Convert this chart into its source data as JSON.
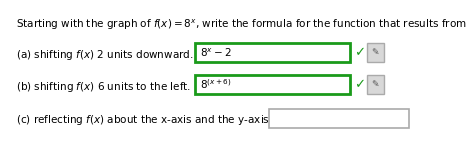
{
  "title_text": "Starting with the graph of $f(x) = 8^x$, write the formula for the function that results from",
  "line_a_label": "(a) shifting $f(x)$ 2 units downward.  $\\mathbf{y}$ =",
  "line_a_content": "$8^x - 2$",
  "line_b_label": "(b) shifting $f(x)$ 6 units to the left.  $\\mathbf{y}$ =",
  "line_b_content": "$8^{(x+6)}$",
  "line_c_label": "(c) reflecting $f(x)$ about the x-axis and the y-axis.  $\\mathbf{y}$ =",
  "box_color_correct": "#1a9a1a",
  "box_color_empty": "#aaaaaa",
  "background_color": "#ffffff",
  "text_color": "#000000",
  "blue_color": "#1a5fb4",
  "font_size": 7.5,
  "label_font_size": 7.5,
  "check_color": "#1a9a1a",
  "icon_color": "#555555",
  "icon_bg": "#d8d8d8"
}
